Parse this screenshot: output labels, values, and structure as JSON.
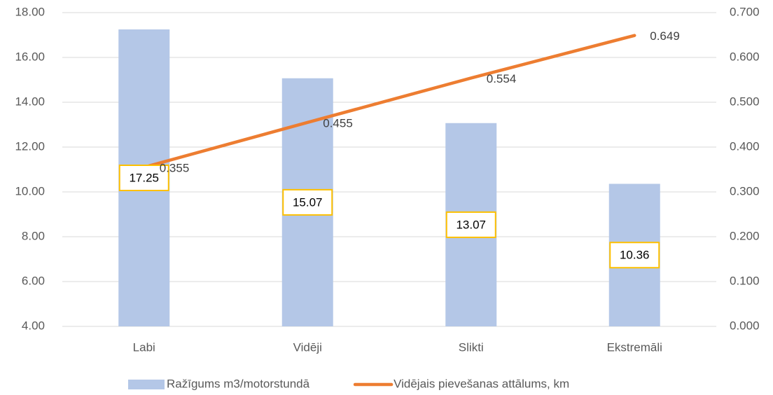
{
  "chart_data": {
    "type": "combo",
    "categories": [
      "Labi",
      "Vidēji",
      "Slikti",
      "Ekstremāli"
    ],
    "series": [
      {
        "name": "Ražīgums m3/motorstundā",
        "type": "bar",
        "color": "#b4c7e7",
        "values": [
          17.25,
          15.07,
          13.07,
          10.36
        ],
        "label_border": "#ffc000"
      },
      {
        "name": "Vidējais pievešanas attālums, km",
        "type": "line",
        "axis": "y2",
        "color": "#ed7d31",
        "values": [
          0.355,
          0.455,
          0.554,
          0.649
        ]
      }
    ],
    "ylim": [
      4,
      18
    ],
    "yticks": [
      {
        "value": 4,
        "label": "4.00"
      },
      {
        "value": 6,
        "label": "6.00"
      },
      {
        "value": 8,
        "label": "8.00"
      },
      {
        "value": 10,
        "label": "10.00"
      },
      {
        "value": 12,
        "label": "12.00"
      },
      {
        "value": 14,
        "label": "14.00"
      },
      {
        "value": 16,
        "label": "16.00"
      },
      {
        "value": 18,
        "label": "18.00"
      }
    ],
    "y2lim": [
      0,
      0.7
    ],
    "y2ticks": [
      {
        "value": 0,
        "label": "0.000"
      },
      {
        "value": 0.1,
        "label": "0.100"
      },
      {
        "value": 0.2,
        "label": "0.200"
      },
      {
        "value": 0.3,
        "label": "0.300"
      },
      {
        "value": 0.4,
        "label": "0.400"
      },
      {
        "value": 0.5,
        "label": "0.500"
      },
      {
        "value": 0.6,
        "label": "0.600"
      },
      {
        "value": 0.7,
        "label": "0.700"
      }
    ],
    "grid": true,
    "legend": "bottom"
  }
}
